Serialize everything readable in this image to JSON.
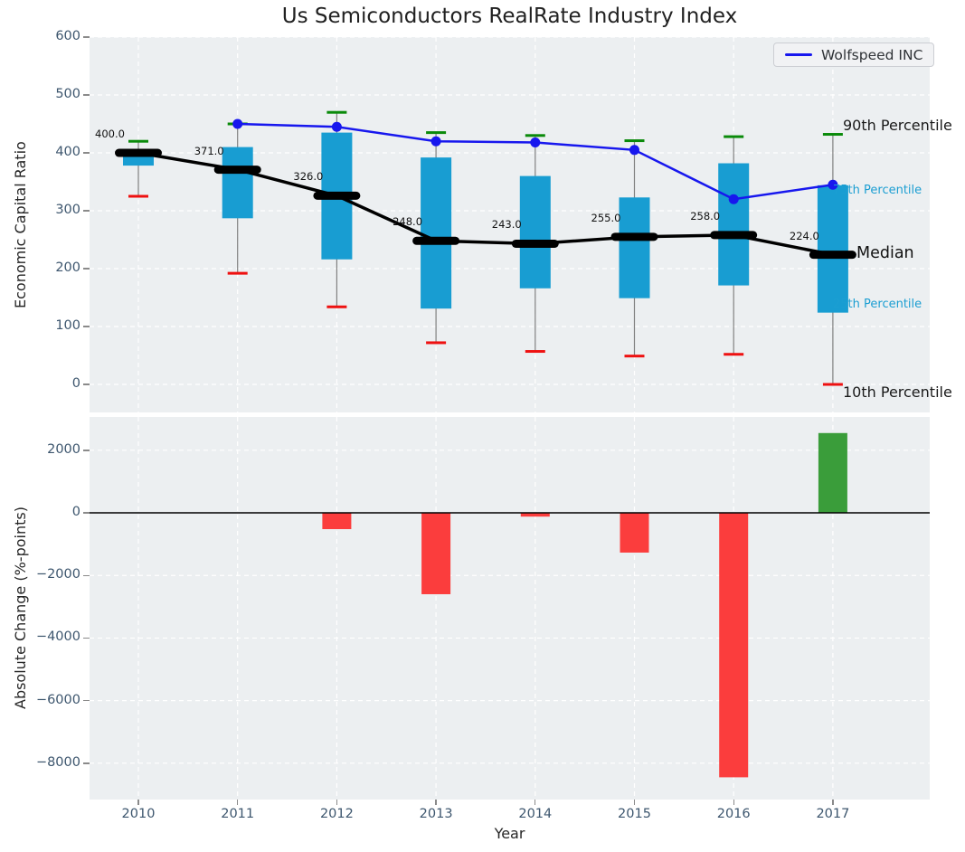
{
  "title": "Us Semiconductors RealRate Industry Index",
  "legend": {
    "label": "Wolfspeed INC"
  },
  "right_labels": [
    {
      "text": "90th Percentile",
      "color": "#1a1a1a"
    },
    {
      "text": "75th Percentile",
      "color": "#1b9ed2"
    },
    {
      "text": "Median",
      "color": "#111111"
    },
    {
      "text": "25th Percentile",
      "color": "#1b9ed2"
    },
    {
      "text": "10th Percentile",
      "color": "#1a1a1a"
    }
  ],
  "colors": {
    "box": "#189dd2",
    "p90_cap": "#0a8a0a",
    "p10_cap": "#ee1111",
    "median": "#000000",
    "wolfspeed": "#1717ee",
    "bar_negative": "#fb3d3d",
    "bar_positive": "#3a9d3a",
    "plot_bg": "#eceff1",
    "grid": "#ffffff",
    "tick": "#3d566e",
    "whisker": "#808080",
    "zero_line": "#000000"
  },
  "chart_data": [
    {
      "type": "box-timeseries",
      "title": "Us Semiconductors RealRate Industry Index",
      "ylabel": "Economic Capital Ratio",
      "categories": [
        "2010",
        "2011",
        "2012",
        "2013",
        "2014",
        "2015",
        "2016",
        "2017"
      ],
      "series": [
        {
          "name": "90th Percentile",
          "values": [
            420,
            450,
            470,
            435,
            430,
            421,
            428,
            432
          ]
        },
        {
          "name": "75th Percentile",
          "values": [
            402,
            410,
            435,
            392,
            360,
            323,
            382,
            344
          ]
        },
        {
          "name": "Median",
          "values": [
            400,
            371,
            326,
            248,
            243,
            255,
            258,
            224
          ]
        },
        {
          "name": "25th Percentile",
          "values": [
            378,
            287,
            216,
            131,
            166,
            149,
            171,
            124
          ]
        },
        {
          "name": "10th Percentile",
          "values": [
            325,
            192,
            134,
            72,
            57,
            49,
            52,
            0
          ]
        },
        {
          "name": "Wolfspeed INC",
          "values": [
            null,
            450,
            445,
            420,
            418,
            405,
            320,
            345
          ]
        }
      ],
      "median_labels": [
        "400.0",
        "371.0",
        "326.0",
        "248.0",
        "243.0",
        "255.0",
        "258.0",
        "224.0"
      ],
      "ylim": [
        -48.4,
        600
      ],
      "yticks": [
        0,
        100,
        200,
        300,
        400,
        500,
        600
      ],
      "grid": true,
      "legend_position": "upper right"
    },
    {
      "type": "bar",
      "ylabel": "Absolute Change (%-points)",
      "xlabel": "Year",
      "categories": [
        "2010",
        "2011",
        "2012",
        "2013",
        "2014",
        "2015",
        "2016",
        "2017"
      ],
      "values": [
        null,
        null,
        -520,
        -2600,
        -120,
        -1270,
        -8450,
        2550
      ],
      "ylim": [
        -9161,
        3064
      ],
      "yticks": [
        2000,
        0,
        -2000,
        -4000,
        -6000,
        -8000
      ],
      "grid": true
    }
  ]
}
